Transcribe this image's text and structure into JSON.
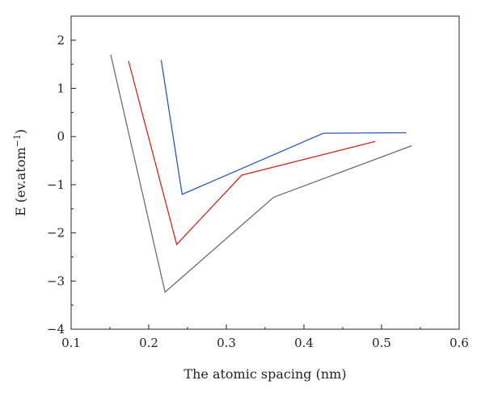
{
  "chart_data": {
    "type": "line",
    "title": "",
    "xlabel": "The atomic spacing (nm)",
    "ylabel": {
      "prefix": "E (ev.atom",
      "superscript": "−1",
      "suffix": ")"
    },
    "xlim": [
      0.1,
      0.6
    ],
    "ylim": [
      -4,
      2.5
    ],
    "xticks": [
      0.1,
      0.2,
      0.3,
      0.4,
      0.5,
      0.6
    ],
    "xtick_labels": [
      "0.1",
      "0.2",
      "0.3",
      "0.4",
      "0.5",
      "0.6"
    ],
    "yticks": [
      -4,
      -3,
      -2,
      -1,
      0,
      1,
      2
    ],
    "ytick_labels": [
      "−4",
      "−3",
      "−2",
      "−1",
      "0",
      "1",
      "2"
    ],
    "grid": false,
    "legend": "none",
    "series": [
      {
        "color": "#6e6e6e",
        "x": [
          0.151,
          0.221,
          0.361,
          0.539
        ],
        "y": [
          1.7,
          -3.23,
          -1.26,
          -0.19
        ]
      },
      {
        "color": "#cc2a1b",
        "x": [
          0.174,
          0.236,
          0.32,
          0.492
        ],
        "y": [
          1.57,
          -2.24,
          -0.8,
          -0.1
        ]
      },
      {
        "color": "#2b57b8",
        "x": [
          0.216,
          0.243,
          0.425,
          0.532
        ],
        "y": [
          1.59,
          -1.2,
          0.07,
          0.08
        ]
      }
    ]
  }
}
